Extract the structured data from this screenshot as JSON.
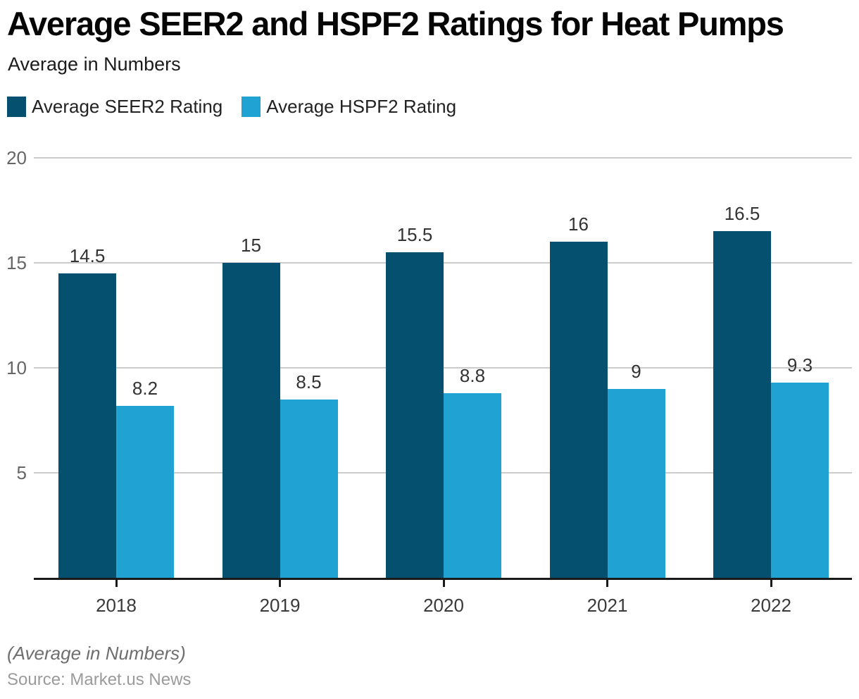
{
  "header": {
    "title": "Average SEER2 and HSPF2 Ratings for Heat Pumps",
    "subtitle": "Average in Numbers"
  },
  "chart_data": {
    "type": "bar",
    "title": "Average SEER2 and HSPF2 Ratings for Heat Pumps",
    "subtitle": "Average in Numbers",
    "categories": [
      "2018",
      "2019",
      "2020",
      "2021",
      "2022"
    ],
    "series": [
      {
        "name": "Average SEER2 Rating",
        "color": "#04506E",
        "values": [
          14.5,
          15,
          15.5,
          16,
          16.5
        ]
      },
      {
        "name": "Average HSPF2 Rating",
        "color": "#20A3D3",
        "values": [
          8.2,
          8.5,
          8.8,
          9,
          9.3
        ]
      }
    ],
    "xlabel": "",
    "ylabel": "",
    "ylim": [
      0,
      20
    ],
    "yticks": [
      5,
      10,
      15,
      20
    ],
    "grid": true,
    "value_labels": true,
    "legend_position": "top-left"
  },
  "footer": {
    "note": "(Average in Numbers)",
    "source": "Source: Market.us News"
  },
  "colors": {
    "seer2_bar": "#04506E",
    "hspf2_bar": "#20A3D3",
    "gridline": "#CCCCCC",
    "axis_line": "#1A1A1A",
    "y_tick_label": "#666666",
    "x_tick_label": "#3A3A3A",
    "value_label": "#333333",
    "background": "#FFFFFF"
  }
}
